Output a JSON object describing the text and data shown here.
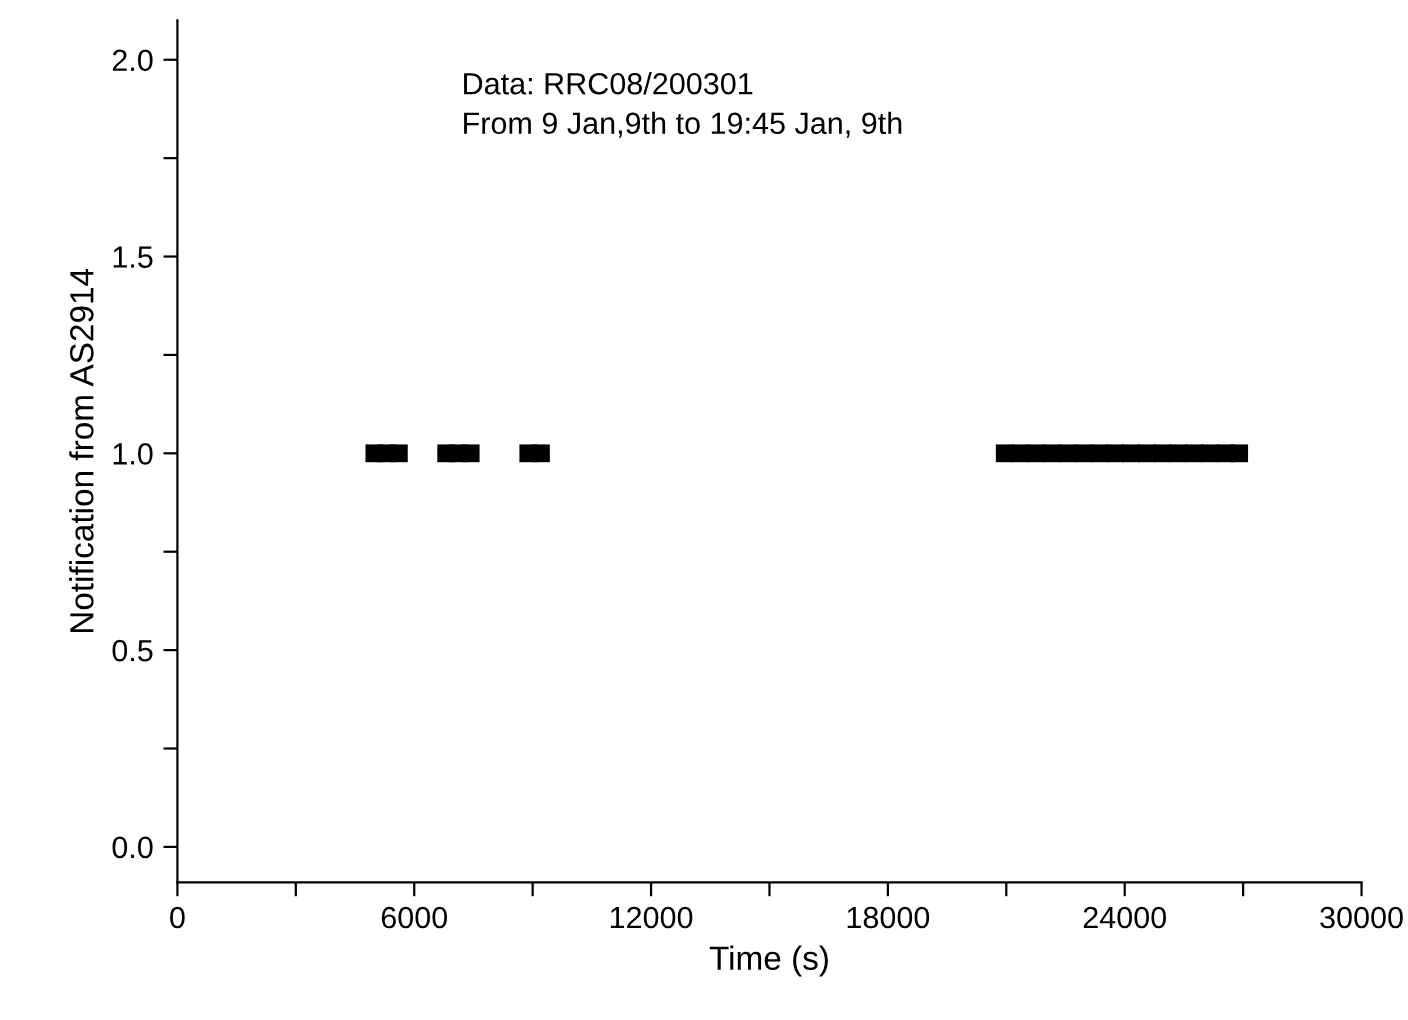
{
  "chart_data": {
    "type": "scatter",
    "xlabel": "Time (s)",
    "ylabel": "Notification from AS2914",
    "annotations": [
      "Data: RRC08/200301",
      "From 9 Jan,9th to 19:45 Jan, 9th"
    ],
    "x": [
      4990,
      5300,
      5610,
      6810,
      7120,
      7430,
      8890,
      9210,
      20960,
      21360,
      21760,
      22160,
      22560,
      22960,
      23360,
      23760,
      24160,
      24560,
      24960,
      25360,
      25760,
      26160,
      26560,
      26900
    ],
    "series": [
      {
        "color": "#000000",
        "values": [
          1,
          1,
          1,
          1,
          1,
          1,
          1,
          1,
          1,
          1,
          1,
          1,
          1,
          1,
          1,
          1,
          1,
          1,
          1,
          1,
          1,
          1,
          1,
          1
        ]
      }
    ],
    "marker": "square",
    "xlim": [
      0,
      30000
    ],
    "xticks": [
      0,
      {
        "value": 3000,
        "label": null
      },
      6000,
      {
        "value": 9000,
        "label": null
      },
      12000,
      {
        "value": 15000,
        "label": null
      },
      18000,
      {
        "value": 21000,
        "label": null
      },
      24000,
      {
        "value": 27000,
        "label": null
      },
      30000
    ],
    "ylim": [
      -0.09,
      2.1
    ],
    "yticks": [
      {
        "value": 0,
        "label": "0.0"
      },
      {
        "value": 0.25,
        "label": null
      },
      {
        "value": 0.5,
        "label": "0.5"
      },
      {
        "value": 0.75,
        "label": null
      },
      {
        "value": 1.0,
        "label": "1.0"
      },
      {
        "value": 1.25,
        "label": null
      },
      {
        "value": 1.5,
        "label": "1.5"
      },
      {
        "value": 1.75,
        "label": null
      },
      {
        "value": 2.0,
        "label": "2.0"
      }
    ],
    "grid": false
  }
}
